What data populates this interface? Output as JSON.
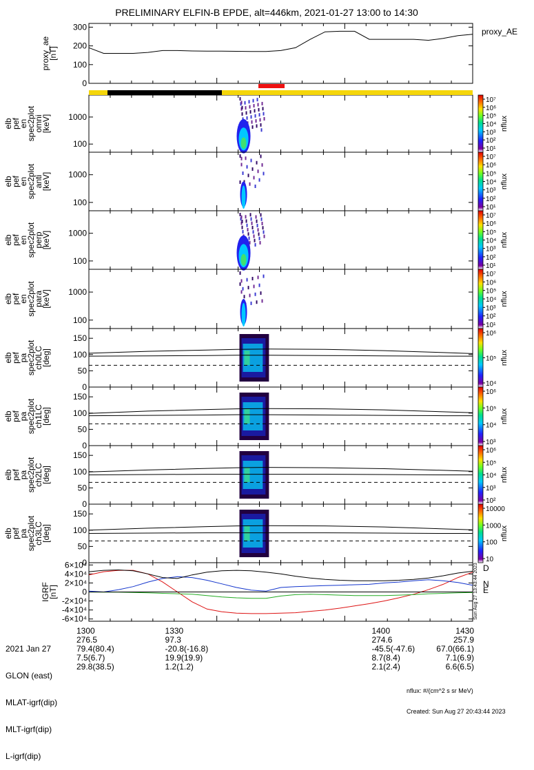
{
  "title": "PRELIMINARY ELFIN-B EPDE, alt=446km, 2021-01-27 13:00 to 14:30",
  "colors": {
    "trace": "#000000",
    "sun": "#f5d60a",
    "shadow": "#000000",
    "science": "#ee1111",
    "igrf_d": "#dd1111",
    "igrf_n": "#1133cc",
    "igrf_e": "#22aa22"
  },
  "time_axis": {
    "range": [
      1300,
      1430
    ],
    "ticks": [
      "1300",
      "1330",
      "1400",
      "1430"
    ]
  },
  "panels": [
    {
      "id": "proxy_ae",
      "ylabel": [
        "proxy_ae",
        "[nT]"
      ],
      "right_label": "proxy_AE",
      "yticks": [
        "0",
        "100",
        "200",
        "300"
      ]
    },
    {
      "id": "en_omni",
      "ylabel": [
        "elb",
        "pef",
        "en",
        "spec2plot",
        "omni",
        "[keV]"
      ],
      "yticks": [
        "100",
        "1000"
      ],
      "cbar_label": "nflux",
      "cbar_ticks": [
        "10¹",
        "10²",
        "10³",
        "10⁴",
        "10⁵",
        "10⁶",
        "10⁷"
      ]
    },
    {
      "id": "en_anti",
      "ylabel": [
        "elb",
        "pef",
        "en",
        "spec2plot",
        "anti",
        "[keV]"
      ],
      "yticks": [
        "100",
        "1000"
      ],
      "cbar_label": "nflux",
      "cbar_ticks": [
        "10¹",
        "10²",
        "10³",
        "10⁴",
        "10⁵",
        "10⁶",
        "10⁷"
      ]
    },
    {
      "id": "en_perp",
      "ylabel": [
        "elb",
        "pef",
        "en",
        "spec2plot",
        "perp",
        "[keV]"
      ],
      "yticks": [
        "100",
        "1000"
      ],
      "cbar_label": "nflux",
      "cbar_ticks": [
        "10¹",
        "10²",
        "10³",
        "10⁴",
        "10⁵",
        "10⁶",
        "10⁷"
      ]
    },
    {
      "id": "en_para",
      "ylabel": [
        "elb",
        "pef",
        "en",
        "spec2plot",
        "para",
        "[keV]"
      ],
      "yticks": [
        "100",
        "1000"
      ],
      "cbar_label": "nflux",
      "cbar_ticks": [
        "10¹",
        "10²",
        "10³",
        "10⁴",
        "10⁵",
        "10⁶",
        "10⁷"
      ]
    },
    {
      "id": "pa_ch0",
      "ylabel": [
        "elb",
        "pef",
        "pa",
        "spec2plot",
        "ch0LC",
        "[deg]"
      ],
      "yticks": [
        "0",
        "50",
        "100",
        "150"
      ],
      "cbar_label": "nflux",
      "cbar_ticks": [
        "10⁴",
        "10⁵",
        "10⁶"
      ]
    },
    {
      "id": "pa_ch1",
      "ylabel": [
        "elb",
        "pef",
        "pa",
        "spec2plot",
        "ch1LC",
        "[deg]"
      ],
      "yticks": [
        "0",
        "50",
        "100",
        "150"
      ],
      "cbar_label": "nflux",
      "cbar_ticks": [
        "10³",
        "10⁴",
        "10⁵",
        "10⁶"
      ]
    },
    {
      "id": "pa_ch2",
      "ylabel": [
        "elb",
        "pef",
        "pa",
        "spec2plot",
        "ch2LC",
        "[deg]"
      ],
      "yticks": [
        "0",
        "50",
        "100",
        "150"
      ],
      "cbar_label": "nflux",
      "cbar_ticks": [
        "10²",
        "10³",
        "10⁴",
        "10⁵",
        "10⁶"
      ]
    },
    {
      "id": "pa_ch3",
      "ylabel": [
        "elb",
        "pef",
        "pa",
        "spec2plot",
        "ch3LC",
        "[deg]"
      ],
      "yticks": [
        "0",
        "50",
        "100",
        "150"
      ],
      "cbar_label": "nflux",
      "cbar_ticks": [
        "10",
        "100",
        "1000",
        "10000"
      ]
    },
    {
      "id": "igrf",
      "ylabel": [
        "IGRF",
        "[nT]"
      ],
      "yticks": [
        "-6×10⁴",
        "-4×10⁴",
        "-2×10⁴",
        "0",
        "2×10⁴",
        "4×10⁴",
        "6×10⁴"
      ],
      "legend": [
        "D",
        "N",
        "E"
      ],
      "side_note": "Sun Aug 27 13:43:44 2023"
    }
  ],
  "chart_data": [
    {
      "type": "line",
      "panel": "proxy_ae",
      "ylim": [
        0,
        320
      ],
      "x": [
        1300,
        1305,
        1310,
        1315,
        1320,
        1325,
        1330,
        1335,
        1340,
        1345,
        1350,
        1355,
        1360,
        1365,
        1370,
        1375,
        1380,
        1385,
        1390,
        1395,
        1400,
        1405,
        1410,
        1415,
        1420,
        1425,
        1430
      ],
      "series": [
        {
          "values": [
            190,
            160,
            160,
            160,
            165,
            175,
            175,
            173,
            172,
            172,
            171,
            170,
            170,
            175,
            190,
            235,
            275,
            278,
            278,
            235,
            235,
            235,
            235,
            230,
            240,
            255,
            262
          ]
        }
      ]
    },
    {
      "type": "line",
      "panel": "pa_ch0",
      "ylim": [
        0,
        180
      ],
      "x": [
        1300,
        1320,
        1340,
        1350,
        1360,
        1380,
        1400,
        1420,
        1430
      ],
      "series": [
        {
          "values": [
            95,
            96,
            97,
            98,
            98,
            97,
            96,
            95,
            95
          ]
        },
        {
          "values": [
            104,
            110,
            114,
            116,
            117,
            116,
            112,
            106,
            103
          ]
        },
        {
          "values": [
            67,
            67,
            67,
            67,
            67,
            67,
            67,
            67,
            67
          ],
          "dash": true
        }
      ]
    },
    {
      "type": "line",
      "panel": "pa_ch1",
      "ylim": [
        0,
        180
      ],
      "x": [
        1300,
        1320,
        1340,
        1350,
        1360,
        1380,
        1400,
        1420,
        1430
      ],
      "series": [
        {
          "values": [
            92,
            93,
            94,
            95,
            95,
            94,
            93,
            92,
            92
          ]
        },
        {
          "values": [
            99,
            106,
            111,
            113,
            114,
            113,
            110,
            104,
            101
          ]
        },
        {
          "values": [
            67,
            67,
            67,
            67,
            67,
            67,
            67,
            67,
            67
          ],
          "dash": true
        }
      ]
    },
    {
      "type": "line",
      "panel": "pa_ch2",
      "ylim": [
        0,
        180
      ],
      "x": [
        1300,
        1320,
        1340,
        1350,
        1360,
        1380,
        1400,
        1420,
        1430
      ],
      "series": [
        {
          "values": [
            90,
            91,
            92,
            92,
            92,
            92,
            91,
            90,
            90
          ]
        },
        {
          "values": [
            99,
            105,
            110,
            112,
            113,
            112,
            109,
            104,
            101
          ]
        },
        {
          "values": [
            67,
            67,
            67,
            67,
            67,
            67,
            67,
            67,
            67
          ],
          "dash": true
        }
      ]
    },
    {
      "type": "line",
      "panel": "pa_ch3",
      "ylim": [
        0,
        180
      ],
      "x": [
        1300,
        1320,
        1340,
        1350,
        1360,
        1380,
        1400,
        1420,
        1430
      ],
      "series": [
        {
          "values": [
            90,
            91,
            92,
            92,
            92,
            92,
            91,
            90,
            90
          ]
        },
        {
          "values": [
            100,
            106,
            111,
            113,
            114,
            113,
            110,
            104,
            101
          ]
        },
        {
          "values": [
            67,
            67,
            67,
            67,
            67,
            67,
            67,
            67,
            67
          ],
          "dash": true
        }
      ]
    },
    {
      "type": "line",
      "panel": "igrf",
      "ylim": [
        -65000,
        65000
      ],
      "x": [
        1300,
        1305,
        1310,
        1315,
        1320,
        1325,
        1330,
        1335,
        1340,
        1345,
        1350,
        1355,
        1360,
        1365,
        1370,
        1375,
        1380,
        1385,
        1390,
        1395,
        1400,
        1405,
        1410,
        1415,
        1420,
        1425,
        1430
      ],
      "series": [
        {
          "name": "D",
          "color": "#dd1111",
          "values": [
            38000,
            45000,
            48000,
            48000,
            40000,
            22000,
            0,
            -22000,
            -38000,
            -44000,
            -47000,
            -48000,
            -48000,
            -47000,
            -46000,
            -43000,
            -40000,
            -36000,
            -31000,
            -26000,
            -20000,
            -13000,
            -5000,
            5000,
            17000,
            32000,
            44000
          ]
        },
        {
          "name": "N",
          "color": "#1133cc",
          "values": [
            2000,
            0,
            5000,
            12000,
            22000,
            30000,
            34000,
            32000,
            26000,
            18000,
            10000,
            4000,
            2000,
            10000,
            12000,
            13000,
            14000,
            15000,
            16000,
            17000,
            20000,
            22000,
            25000,
            27000,
            25000,
            21000,
            15000
          ]
        },
        {
          "name": "E",
          "color": "#22aa22",
          "values": [
            -200,
            -300,
            -500,
            -1000,
            -2000,
            -3000,
            -4000,
            -5000,
            -8000,
            -11000,
            -13000,
            -14000,
            -14000,
            -9000,
            -6000,
            -5000,
            -6000,
            -7000,
            -8000,
            -8000,
            -8000,
            -7000,
            -6000,
            -4000,
            -3000,
            -2000,
            -1000
          ]
        },
        {
          "name": "",
          "color": "#000000",
          "values": [
            45000,
            48000,
            49000,
            47000,
            40000,
            32000,
            30000,
            38000,
            44000,
            47000,
            48000,
            47000,
            44000,
            40000,
            35000,
            31000,
            28000,
            26000,
            25000,
            25000,
            25000,
            26000,
            28000,
            31000,
            36000,
            42000,
            46000
          ]
        }
      ]
    }
  ],
  "footer": {
    "date_label": "2021 Jan 27",
    "rows": [
      {
        "label": "",
        "values": [
          "1300",
          "1330",
          "1400",
          "1430"
        ]
      },
      {
        "label": "GLON (east)",
        "values": [
          "276.5",
          "97.3",
          "274.6",
          "257.9"
        ]
      },
      {
        "label": "MLAT-igrf(dip)",
        "values": [
          "79.4(80.4)",
          "-20.8(-16.8)",
          "-45.5(-47.6)",
          "67.0(66.1)"
        ]
      },
      {
        "label": "MLT-igrf(dip)",
        "values": [
          "7.5(6.7)",
          "19.9(19.9)",
          "8.7(8.4)",
          "7.1(6.9)"
        ]
      },
      {
        "label": "L-igrf(dip)",
        "values": [
          "29.8(38.5)",
          "1.2(1.2)",
          "2.1(2.4)",
          "6.6(6.5)"
        ]
      }
    ],
    "units_note": "nflux: #/(cm^2 s sr MeV)",
    "created": "Created: Sun Aug 27 20:43:44 2023"
  }
}
